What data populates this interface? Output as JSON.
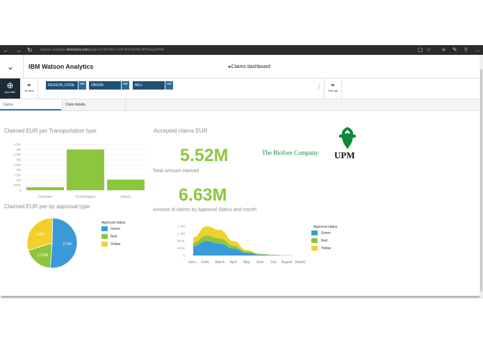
{
  "browser": {
    "url_prefix": "watson.analytics.",
    "url_domain": "ibmcloud.com",
    "url_suffix": "/pages/a7362ebe-140f-4f16-8746-6872eaa22d45",
    "back": "←",
    "forward": "→",
    "refresh": "↻"
  },
  "header": {
    "app_name": "IBM Watson Analytics",
    "dashboard_title": "Claims dashboard",
    "collapse_glyph": "⌄"
  },
  "filterbar": {
    "add_filter": "Add filter",
    "all_tabs": "All tabs",
    "this_tab": "This tab",
    "chips": [
      {
        "label": "REASON_CODE",
        "menu": "•••"
      },
      {
        "label": "ORIGIN",
        "menu": "•••"
      },
      {
        "label": "MILL",
        "menu": "•••"
      }
    ],
    "more": "⋮"
  },
  "tabs": [
    {
      "label": "Claims",
      "active": true
    },
    {
      "label": "Claim details",
      "active": false
    }
  ],
  "panels": {
    "bar_title": "Claimed EUR per Transportation type",
    "pie_title": "Claimed EUR per by approval type",
    "accepted_title": "Accepted claims EUR",
    "accepted_value": "5.52M",
    "total_title": "Total amount claimed",
    "total_value": "6.63M",
    "area_title": "Amount of claims by Approval Status and month"
  },
  "logo": {
    "tagline": "The Biofore Company",
    "brand": "UPM"
  },
  "colors": {
    "green": "#8cc63f",
    "blue": "#3a9ad9",
    "yellow": "#f2d02c",
    "navy": "#1f4f73",
    "upm_green": "#0b8a3a"
  },
  "chart_data": [
    {
      "type": "bar",
      "title": "Claimed EUR per Transportation type",
      "categories": [
        "Container",
        "Truck/Wagon",
        "(blank)"
      ],
      "values": [
        300000,
        4000000,
        1050000
      ],
      "y_ticks": [
        "4.5M",
        "4M",
        "3.5M",
        "3M",
        "2.5M",
        "2M",
        "1.5M",
        "1M",
        "500K",
        "0"
      ],
      "ylim": [
        0,
        4500000
      ],
      "grid": true
    },
    {
      "type": "pie",
      "title": "Claimed EUR per by approval type",
      "legend_title": "Approval status",
      "legend_position": "right",
      "slices": [
        {
          "label": "Green",
          "value": 2.7,
          "text": "2.7M",
          "color": "#3a9ad9"
        },
        {
          "label": "Red",
          "value": 1.01,
          "text": "1.01M",
          "color": "#8cc63f"
        },
        {
          "label": "Yellow",
          "value": 1.6,
          "text": "1.6M",
          "color": "#f2d02c"
        }
      ]
    },
    {
      "type": "area",
      "title": "Amount of claims by Approval Status and month",
      "legend_title": "Approval status",
      "legend_position": "right",
      "categories": [
        "Janu...",
        "Febr...",
        "March",
        "April",
        "May",
        "June",
        "July",
        "August",
        "(blank)"
      ],
      "y_ticks": [
        "1.6M",
        "1.2M",
        "800K",
        "400K",
        "0"
      ],
      "ylim": [
        0,
        1600000
      ],
      "stacked": true,
      "series": [
        {
          "name": "Green",
          "color": "#3a9ad9",
          "values": [
            500000,
            780000,
            650000,
            380000,
            150000,
            50000,
            20000,
            10000,
            0
          ]
        },
        {
          "name": "Red",
          "color": "#8cc63f",
          "values": [
            200000,
            320000,
            280000,
            160000,
            60000,
            20000,
            8000,
            4000,
            0
          ]
        },
        {
          "name": "Yellow",
          "color": "#f2d02c",
          "values": [
            300000,
            500000,
            470000,
            260000,
            90000,
            30000,
            10000,
            5000,
            0
          ]
        }
      ]
    }
  ]
}
